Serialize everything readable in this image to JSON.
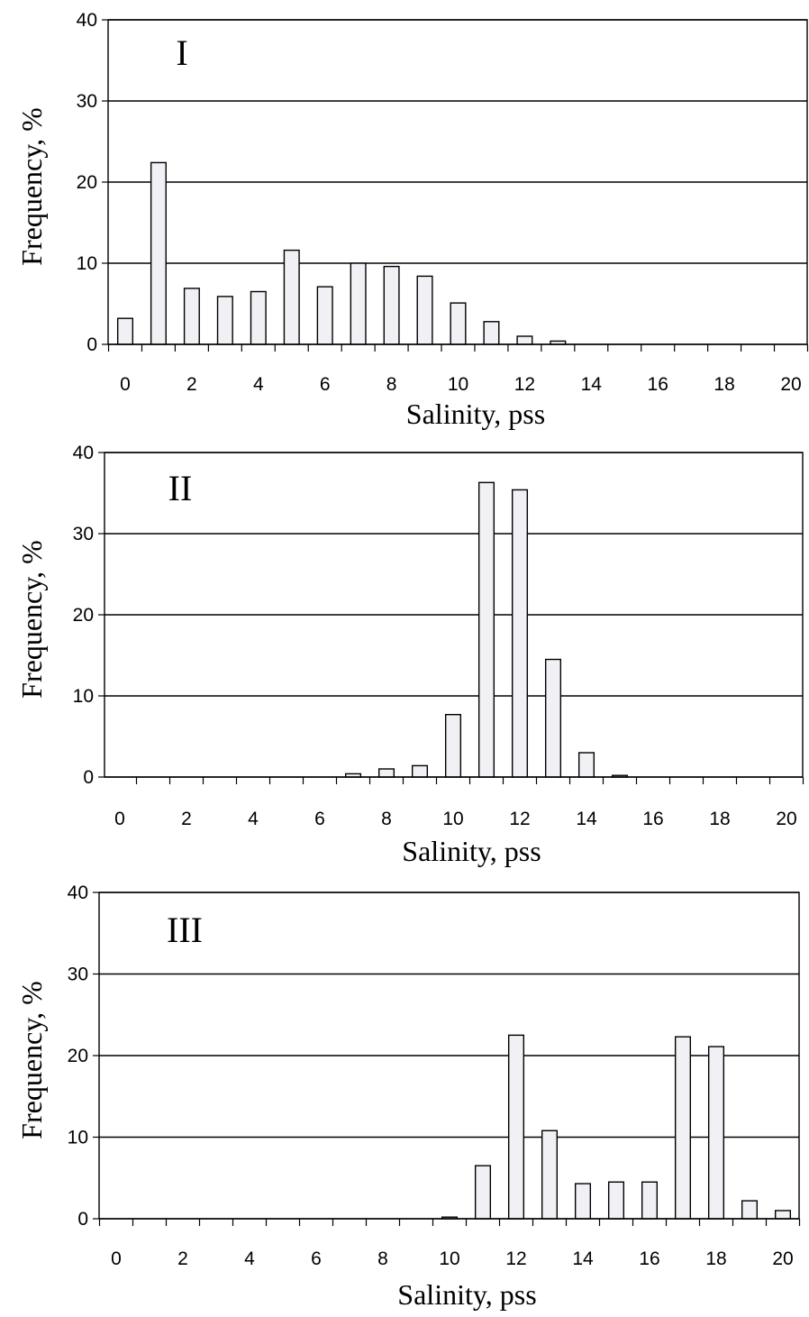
{
  "chart_data": [
    {
      "type": "bar",
      "panel_label": "I",
      "xlabel": "Salinity, pss",
      "ylabel": "Frequency, %",
      "ylim": [
        0,
        40
      ],
      "yticks": [
        0,
        10,
        20,
        30,
        40
      ],
      "xlim": [
        0,
        20
      ],
      "xticks": [
        0,
        2,
        4,
        6,
        8,
        10,
        12,
        14,
        16,
        18,
        20
      ],
      "grid": "horizontal",
      "categories": [
        0,
        1,
        2,
        3,
        4,
        5,
        6,
        7,
        8,
        9,
        10,
        11,
        12,
        13,
        14,
        15,
        16,
        17,
        18,
        19,
        20
      ],
      "values": [
        3.2,
        22.4,
        6.9,
        5.9,
        6.5,
        11.6,
        7.1,
        10.0,
        9.6,
        8.4,
        5.1,
        2.8,
        1.0,
        0.4,
        0,
        0,
        0,
        0,
        0,
        0,
        0
      ]
    },
    {
      "type": "bar",
      "panel_label": "II",
      "xlabel": "Salinity, pss",
      "ylabel": "Frequency, %",
      "ylim": [
        0,
        40
      ],
      "yticks": [
        0,
        10,
        20,
        30,
        40
      ],
      "xlim": [
        0,
        20
      ],
      "xticks": [
        0,
        2,
        4,
        6,
        8,
        10,
        12,
        14,
        16,
        18,
        20
      ],
      "grid": "horizontal",
      "categories": [
        0,
        1,
        2,
        3,
        4,
        5,
        6,
        7,
        8,
        9,
        10,
        11,
        12,
        13,
        14,
        15,
        16,
        17,
        18,
        19,
        20
      ],
      "values": [
        0,
        0,
        0,
        0,
        0,
        0,
        0,
        0.4,
        1.0,
        1.4,
        7.7,
        36.3,
        35.4,
        14.5,
        3.0,
        0.2,
        0,
        0,
        0,
        0,
        0
      ]
    },
    {
      "type": "bar",
      "panel_label": "III",
      "xlabel": "Salinity, pss",
      "ylabel": "Frequency, %",
      "ylim": [
        0,
        40
      ],
      "yticks": [
        0,
        10,
        20,
        30,
        40
      ],
      "xlim": [
        0,
        20
      ],
      "xticks": [
        0,
        2,
        4,
        6,
        8,
        10,
        12,
        14,
        16,
        18,
        20
      ],
      "grid": "horizontal",
      "categories": [
        0,
        1,
        2,
        3,
        4,
        5,
        6,
        7,
        8,
        9,
        10,
        11,
        12,
        13,
        14,
        15,
        16,
        17,
        18,
        19,
        20
      ],
      "values": [
        0,
        0,
        0,
        0,
        0,
        0,
        0,
        0,
        0,
        0,
        0.2,
        6.5,
        22.5,
        10.8,
        4.3,
        4.5,
        4.5,
        22.3,
        21.1,
        2.2,
        1.0
      ]
    }
  ],
  "colors": {
    "bar_fill": "#f0f0f5",
    "line": "#000000",
    "background": "#ffffff"
  }
}
